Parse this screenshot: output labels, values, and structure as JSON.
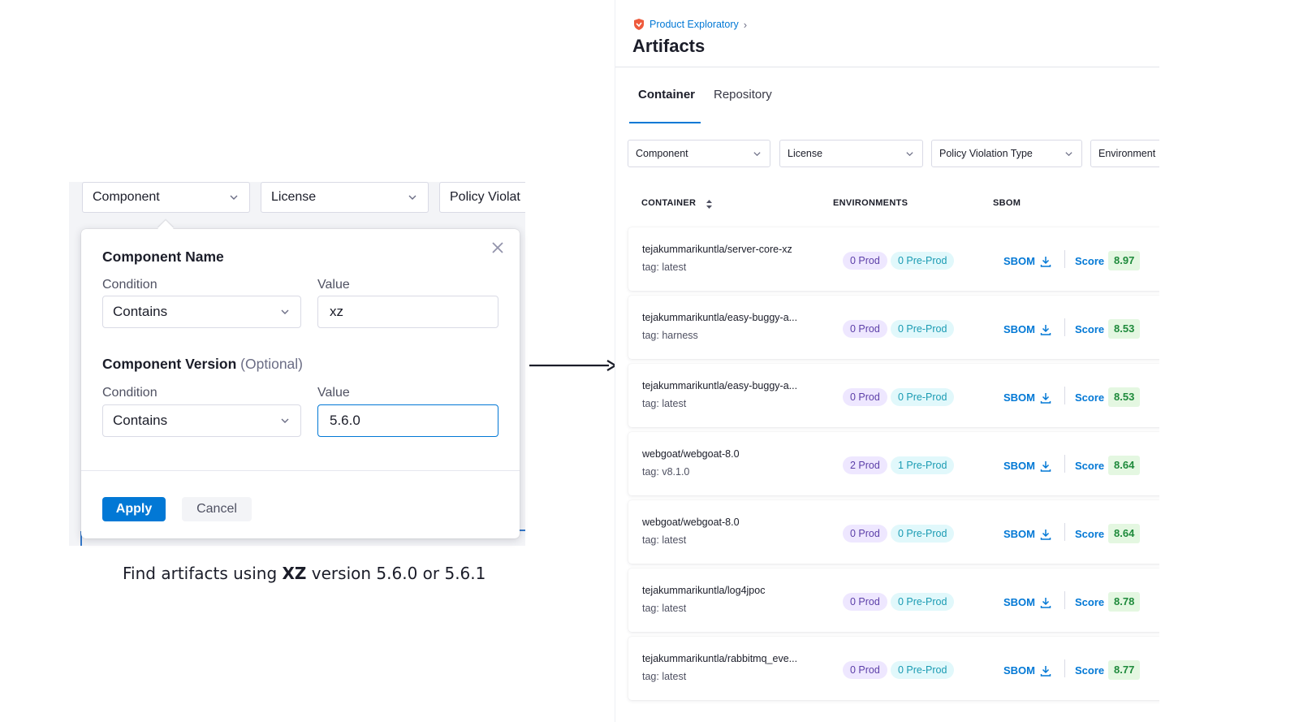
{
  "left": {
    "filters": [
      "Component",
      "License",
      "Policy Violat"
    ],
    "popover": {
      "component_name_heading": "Component Name",
      "condition_label": "Condition",
      "value_label": "Value",
      "name_condition": "Contains",
      "name_value": "xz",
      "version_heading": "Component Version",
      "version_optional": "(Optional)",
      "version_condition": "Contains",
      "version_value": "5.6.0",
      "apply_label": "Apply",
      "cancel_label": "Cancel"
    },
    "caption_prefix": "Find artifacts using ",
    "caption_bold": "XZ",
    "caption_suffix": " version 5.6.0 or 5.6.1"
  },
  "right": {
    "breadcrumb": "Product Exploratory",
    "title": "Artifacts",
    "tabs": [
      "Container",
      "Repository"
    ],
    "active_tab": "Container",
    "filters": [
      "Component",
      "License",
      "Policy Violation Type",
      "Environment"
    ],
    "columns": [
      "CONTAINER",
      "ENVIRONMENTS",
      "SBOM"
    ],
    "sbom_label": "SBOM",
    "score_label": "Score",
    "rows": [
      {
        "name": "tejakummarikuntla/server-core-xz",
        "tag": "tag: latest",
        "prod": "0 Prod",
        "preprod": "0 Pre-Prod",
        "score": "8.97"
      },
      {
        "name": "tejakummarikuntla/easy-buggy-a...",
        "tag": "tag: harness",
        "prod": "0 Prod",
        "preprod": "0 Pre-Prod",
        "score": "8.53"
      },
      {
        "name": "tejakummarikuntla/easy-buggy-a...",
        "tag": "tag: latest",
        "prod": "0 Prod",
        "preprod": "0 Pre-Prod",
        "score": "8.53"
      },
      {
        "name": "webgoat/webgoat-8.0",
        "tag": "tag: v8.1.0",
        "prod": "2 Prod",
        "preprod": "1 Pre-Prod",
        "score": "8.64"
      },
      {
        "name": "webgoat/webgoat-8.0",
        "tag": "tag: latest",
        "prod": "0 Prod",
        "preprod": "0 Pre-Prod",
        "score": "8.64"
      },
      {
        "name": "tejakummarikuntla/log4jpoc",
        "tag": "tag: latest",
        "prod": "0 Prod",
        "preprod": "0 Pre-Prod",
        "score": "8.78"
      },
      {
        "name": "tejakummarikuntla/rabbitmq_eve...",
        "tag": "tag: latest",
        "prod": "0 Prod",
        "preprod": "0 Pre-Prod",
        "score": "8.77"
      }
    ]
  },
  "colors": {
    "accent": "#0278d5",
    "prod_badge_bg": "#eee7ff",
    "preprod_badge_bg": "#e1f8fb",
    "score_bg": "#e4f7e1"
  },
  "icons": [
    "chevron-down-icon",
    "close-icon",
    "arrow-right-icon",
    "shield-logo-icon",
    "sort-icon",
    "download-icon"
  ]
}
